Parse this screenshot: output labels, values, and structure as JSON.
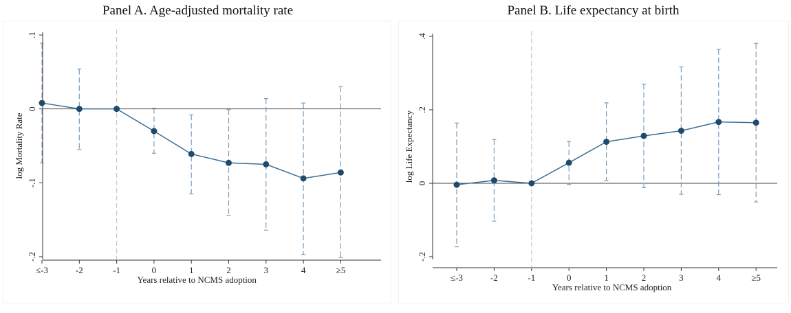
{
  "chart_data": [
    {
      "type": "line",
      "title": "Panel A. Age-adjusted mortality rate",
      "xlabel": "Years relative to NCMS adoption",
      "ylabel": "log Mortality Rate",
      "categories": [
        "≤-3",
        "-2",
        "-1",
        "0",
        "1",
        "2",
        "3",
        "4",
        "≥5"
      ],
      "yticks": [
        ".1",
        "0",
        "-.1",
        "-.2"
      ],
      "ytick_values": [
        0.1,
        0,
        -0.1,
        -0.2
      ],
      "ylim": [
        -0.2,
        0.1
      ],
      "event_category": "-1",
      "series": [
        {
          "values": [
            0.008,
            0.0,
            0.0,
            -0.03,
            -0.061,
            -0.073,
            -0.075,
            -0.094,
            -0.086
          ],
          "ci_low": [
            -0.073,
            -0.055,
            0.0,
            -0.06,
            -0.115,
            -0.144,
            -0.164,
            -0.197,
            -0.201
          ],
          "ci_high": [
            0.089,
            0.054,
            0.0,
            0.001,
            -0.008,
            -0.001,
            0.014,
            0.008,
            0.03
          ]
        }
      ],
      "colors": {
        "line": "#3b6e93",
        "marker": "#1f4a6b",
        "ci": "#7a9cb8",
        "ref": "#c8c8c8",
        "zero": "#444444"
      }
    },
    {
      "type": "line",
      "title": "Panel B. Life expectancy at birth",
      "xlabel": "Years relative to NCMS adoption",
      "ylabel": "log Life Expectancy",
      "categories": [
        "≤-3",
        "-2",
        "-1",
        "0",
        "1",
        "2",
        "3",
        "4",
        "≥5"
      ],
      "yticks": [
        ".4",
        ".2",
        "0",
        "-.2"
      ],
      "ytick_values": [
        0.4,
        0.2,
        0,
        -0.2
      ],
      "ylim": [
        -0.2,
        0.4
      ],
      "event_category": "-1",
      "series": [
        {
          "values": [
            -0.004,
            0.008,
            0.0,
            0.056,
            0.113,
            0.129,
            0.143,
            0.167,
            0.165
          ],
          "ci_low": [
            -0.173,
            -0.103,
            0.0,
            -0.003,
            0.007,
            -0.012,
            -0.03,
            -0.031,
            -0.051
          ],
          "ci_high": [
            0.164,
            0.119,
            0.0,
            0.114,
            0.219,
            0.27,
            0.317,
            0.365,
            0.381
          ]
        }
      ],
      "colors": {
        "line": "#3b6e93",
        "marker": "#1f4a6b",
        "ci": "#7a9cb8",
        "ref": "#c8c8c8",
        "zero": "#444444"
      }
    }
  ]
}
